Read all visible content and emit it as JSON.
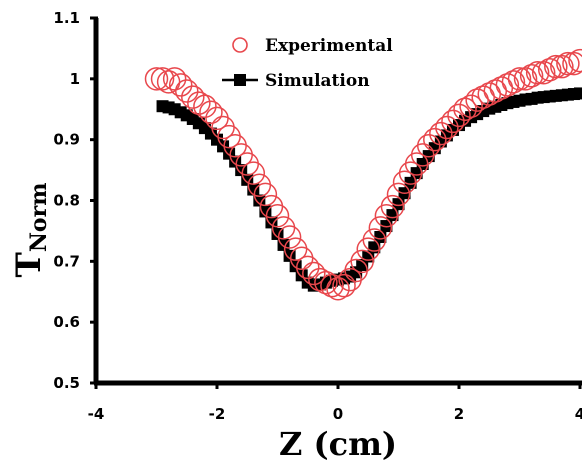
{
  "chart_data": {
    "type": "scatter",
    "title": "",
    "xlabel": "Z (cm)",
    "ylabel_main": "T",
    "ylabel_sub": "Norm",
    "xlim": [
      -4,
      4
    ],
    "ylim": [
      0.5,
      1.1
    ],
    "x_ticks": [
      "-4",
      "-2",
      "0",
      "2",
      "4"
    ],
    "y_ticks": [
      "0.5",
      "0.6",
      "0.7",
      "0.8",
      "0.9",
      "1",
      "1.1"
    ],
    "grid": false,
    "legend_position": "top-center",
    "series": [
      {
        "name": "Experimental",
        "marker": "open-circle",
        "color": "#e8474c",
        "x": [
          -3.0,
          -2.9,
          -2.8,
          -2.7,
          -2.6,
          -2.5,
          -2.4,
          -2.3,
          -2.2,
          -2.1,
          -2.0,
          -1.9,
          -1.8,
          -1.7,
          -1.6,
          -1.5,
          -1.4,
          -1.3,
          -1.2,
          -1.1,
          -1.0,
          -0.9,
          -0.8,
          -0.7,
          -0.6,
          -0.5,
          -0.4,
          -0.3,
          -0.2,
          -0.1,
          0.0,
          0.1,
          0.2,
          0.3,
          0.4,
          0.5,
          0.6,
          0.7,
          0.8,
          0.9,
          1.0,
          1.1,
          1.2,
          1.3,
          1.4,
          1.5,
          1.6,
          1.7,
          1.8,
          1.9,
          2.0,
          2.1,
          2.2,
          2.3,
          2.4,
          2.5,
          2.6,
          2.7,
          2.8,
          2.9,
          3.0,
          3.1,
          3.2,
          3.3,
          3.4,
          3.5,
          3.6,
          3.7,
          3.8,
          3.9,
          4.0
        ],
        "y": [
          1.0,
          1.0,
          0.995,
          1.0,
          0.99,
          0.98,
          0.97,
          0.96,
          0.955,
          0.945,
          0.935,
          0.92,
          0.905,
          0.89,
          0.875,
          0.86,
          0.845,
          0.825,
          0.81,
          0.79,
          0.775,
          0.755,
          0.74,
          0.72,
          0.705,
          0.69,
          0.68,
          0.67,
          0.665,
          0.66,
          0.655,
          0.66,
          0.67,
          0.685,
          0.7,
          0.72,
          0.735,
          0.755,
          0.775,
          0.79,
          0.81,
          0.83,
          0.845,
          0.86,
          0.875,
          0.89,
          0.9,
          0.91,
          0.92,
          0.93,
          0.94,
          0.95,
          0.955,
          0.965,
          0.97,
          0.975,
          0.98,
          0.985,
          0.99,
          0.995,
          1.0,
          1.0,
          1.005,
          1.01,
          1.01,
          1.015,
          1.02,
          1.02,
          1.025,
          1.025,
          1.03
        ]
      },
      {
        "name": "Simulation",
        "marker": "filled-square-line",
        "color": "#000000",
        "x": [
          -2.9,
          -2.8,
          -2.7,
          -2.6,
          -2.5,
          -2.4,
          -2.3,
          -2.2,
          -2.1,
          -2.0,
          -1.9,
          -1.8,
          -1.7,
          -1.6,
          -1.5,
          -1.4,
          -1.3,
          -1.2,
          -1.1,
          -1.0,
          -0.9,
          -0.8,
          -0.7,
          -0.6,
          -0.5,
          -0.4,
          -0.3,
          -0.2,
          -0.1,
          0.0,
          0.1,
          0.2,
          0.3,
          0.4,
          0.5,
          0.6,
          0.7,
          0.8,
          0.9,
          1.0,
          1.1,
          1.2,
          1.3,
          1.4,
          1.5,
          1.6,
          1.7,
          1.8,
          1.9,
          2.0,
          2.1,
          2.2,
          2.3,
          2.4,
          2.5,
          2.6,
          2.7,
          2.8,
          2.9,
          3.0,
          3.1,
          3.2,
          3.3,
          3.4,
          3.5,
          3.6,
          3.7,
          3.8,
          3.9,
          4.0
        ],
        "y": [
          0.955,
          0.953,
          0.95,
          0.945,
          0.94,
          0.934,
          0.927,
          0.919,
          0.91,
          0.9,
          0.889,
          0.877,
          0.864,
          0.85,
          0.834,
          0.818,
          0.8,
          0.782,
          0.764,
          0.745,
          0.727,
          0.709,
          0.692,
          0.677,
          0.665,
          0.66,
          0.662,
          0.665,
          0.668,
          0.67,
          0.672,
          0.675,
          0.682,
          0.694,
          0.708,
          0.723,
          0.74,
          0.758,
          0.776,
          0.794,
          0.812,
          0.829,
          0.845,
          0.86,
          0.873,
          0.886,
          0.897,
          0.907,
          0.916,
          0.924,
          0.931,
          0.937,
          0.942,
          0.947,
          0.951,
          0.954,
          0.957,
          0.96,
          0.962,
          0.964,
          0.966,
          0.967,
          0.969,
          0.97,
          0.971,
          0.972,
          0.973,
          0.974,
          0.975,
          0.976
        ]
      }
    ]
  }
}
